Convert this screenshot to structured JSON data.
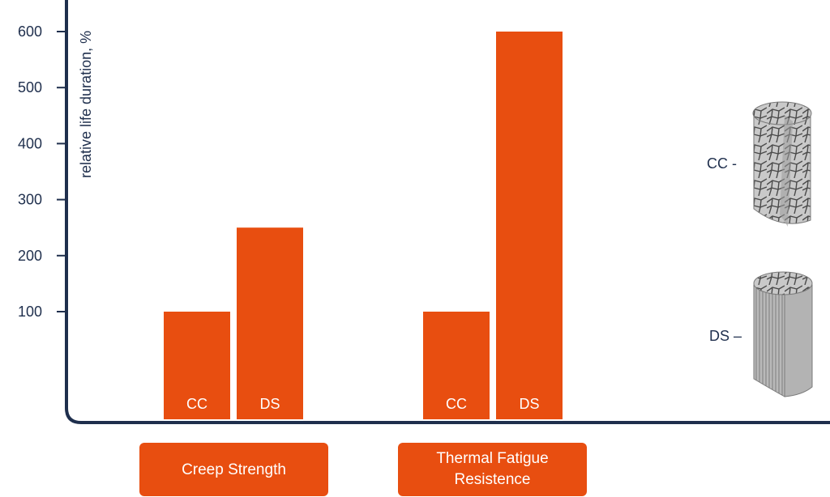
{
  "chart_data": {
    "type": "bar",
    "ylabel": "relative life duration, %",
    "yticks": [
      100,
      200,
      300,
      400,
      500,
      600
    ],
    "ylim": [
      -95,
      700
    ],
    "groups": [
      {
        "label_lines": [
          "Creep Strength"
        ],
        "bars": [
          {
            "name": "CC",
            "value": 100
          },
          {
            "name": "DS",
            "value": 250
          }
        ]
      },
      {
        "label_lines": [
          "Thermal Fatigue",
          "Resistence"
        ],
        "bars": [
          {
            "name": "CC",
            "value": 100
          },
          {
            "name": "DS",
            "value": 600
          }
        ]
      }
    ],
    "colors": {
      "bar": "#e84e10",
      "axis": "#1f2f4d",
      "text": "#1f2f4d"
    }
  },
  "legend": {
    "cc_label": "CC -",
    "ds_label": "DS –"
  }
}
